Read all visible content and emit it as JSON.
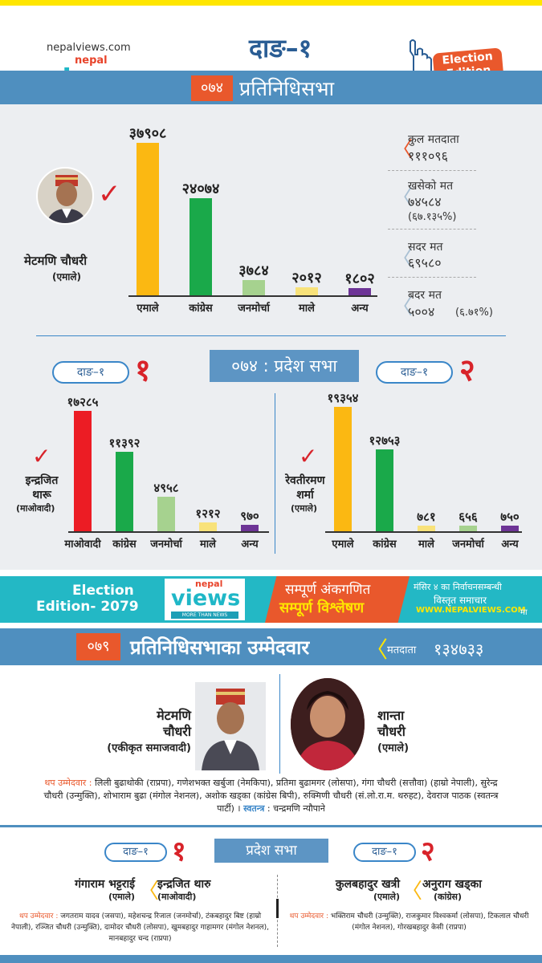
{
  "header": {
    "site": "nepalviews.com",
    "logo_top": "nepal",
    "logo_main": "views",
    "logo_tagline": "MORE THAN NEWS",
    "constituency": "दाङ–१",
    "edition_badge": "Election Edition"
  },
  "hor2074": {
    "year": "०७४",
    "title": "प्रतिनिधिसभा",
    "winner_name": "मेटमणि चौधरी",
    "winner_party": "(एमाले)",
    "chart_data": {
      "type": "bar",
      "categories": [
        "एमाले",
        "कांग्रेस",
        "जनमोर्चा",
        "माले",
        "अन्य"
      ],
      "values": [
        37908,
        24074,
        3784,
        2012,
        1802
      ],
      "labels": [
        "३७९०८",
        "२४०७४",
        "३७८४",
        "२०१२",
        "१८०२"
      ],
      "colors": [
        "#fbb812",
        "#1aa94a",
        "#a6d28f",
        "#f8e27a",
        "#6d3496"
      ]
    },
    "stats": {
      "total_voters_label": "कुल मतदाता",
      "total_voters": "१११०९६",
      "cast_label": "खसेको मत",
      "cast": "७४५८४",
      "cast_pct": "(६७.१३५%)",
      "valid_label": "सदर मत",
      "valid": "६९५८०",
      "invalid_label": "बदर मत",
      "invalid": "५००४",
      "invalid_pct": "(६.७१%)"
    }
  },
  "province2074": {
    "title": "०७४ : प्रदेश सभा",
    "left": {
      "pill": "दाङ–१",
      "number": "१",
      "winner_name": "इन्द्रजित थारू",
      "winner_party": "(माओवादी)",
      "chart_data": {
        "type": "bar",
        "categories": [
          "माओवादी",
          "कांग्रेस",
          "जनमोर्चा",
          "माले",
          "अन्य"
        ],
        "values": [
          17285,
          11392,
          4958,
          1212,
          970
        ],
        "labels": [
          "१७२८५",
          "११३९२",
          "४९५८",
          "१२१२",
          "९७०"
        ],
        "colors": [
          "#ec1c24",
          "#1aa94a",
          "#a6d28f",
          "#f8e27a",
          "#6d3496"
        ]
      }
    },
    "right": {
      "pill": "दाङ–१",
      "number": "२",
      "winner_name": "रेवतीरमण शर्मा",
      "winner_party": "(एमाले)",
      "chart_data": {
        "type": "bar",
        "categories": [
          "एमाले",
          "कांग्रेस",
          "माले",
          "जनमोर्चा",
          "अन्य"
        ],
        "values": [
          19354,
          12753,
          781,
          656,
          750
        ],
        "labels": [
          "१९३५४",
          "१२७५३",
          "७८१",
          "६५६",
          "७५०"
        ],
        "colors": [
          "#fbb812",
          "#1aa94a",
          "#f8e27a",
          "#a6d28f",
          "#6d3496"
        ]
      }
    }
  },
  "banner": {
    "edition_line1": "Election",
    "edition_line2": "Edition- 2079",
    "center_top": "सम्पूर्ण अंकगणित",
    "center_bottom": "सम्पूर्ण विश्लेषण",
    "right_line1": "मंसिर ४ का निर्वाचनसम्बन्धी",
    "right_line2": "विस्तृत समाचार",
    "right_url": "WWW.NEPALVIEWS.COM",
    "right_suffix": "मा"
  },
  "hor2079": {
    "year": "०७९",
    "title": "प्रतिनिधिसभाका उम्मेदवार",
    "voters_label": "मतदाता",
    "voters": "१३४७३३",
    "candidate1_name_l1": "मेटमणि",
    "candidate1_name_l2": "चौधरी",
    "candidate1_party": "(एकीकृत समाजवादी)",
    "candidate2_name_l1": "शान्ता",
    "candidate2_name_l2": "चौधरी",
    "candidate2_party": "(एमाले)",
    "other_label": "थप उम्मेदवार :",
    "others": "लिली बुढाथोकी (राप्रपा), गणेशभक्त खर्बुजा (नेमकिपा), प्रतिमा बुढामगर (लोसपा), गंगा चौधरी (सत्तौवा) (हाम्रो नेपाली), सुरेन्द्र चौधरी (उन्मुक्ति), शोभाराम बुढा (मंगोल नेशनल), अशोक खड्का (कांग्रेस बिपी), रुक्मिणी चौधरी (सं.लो.रा.म. थरुहट), देवराज पाठक (स्वतन्त्र पार्टी) ।",
    "independent_label": "स्वतन्त्र",
    "independent": ": चन्द्रमणि न्यौपाने"
  },
  "province2079": {
    "title": "प्रदेश सभा",
    "left": {
      "pill": "दाङ–१",
      "number": "१",
      "cand1_name": "गंगाराम भट्टराई",
      "cand1_party": "(एमाले)",
      "cand2_name": "इन्द्रजित थारु",
      "cand2_party": "(माओवादी)",
      "other_label": "थप उम्मेदवार :",
      "others": "जगतराम यादव (जसपा), महेशचन्द्र रिजाल (जनमोर्चा), टंकबहादुर बिष्ट (हाम्रो नेपाली), रञ्जित चौधरी (उन्मुक्ति), दामोदर चौधरी (लोसपा), खुमबहादुर गाहामगर (मंगोल नेशनल), मानबहादुर चन्द (राप्रपा)"
    },
    "right": {
      "pill": "दाङ–१",
      "number": "२",
      "cand1_name": "कुलबहादुर खत्री",
      "cand1_party": "(एमाले)",
      "cand2_name": "अनुराग खड्का",
      "cand2_party": "(कांग्रेस)",
      "other_label": "थप उम्मेदवार :",
      "others": "भक्तिराम चौधरी (उन्मुक्ति), राजकुमार विश्वकर्मा (लोसपा), टिकलाल चौधरी (मंगोल नेशनल), गोरखबहादुर केसी (राप्रपा)"
    }
  }
}
